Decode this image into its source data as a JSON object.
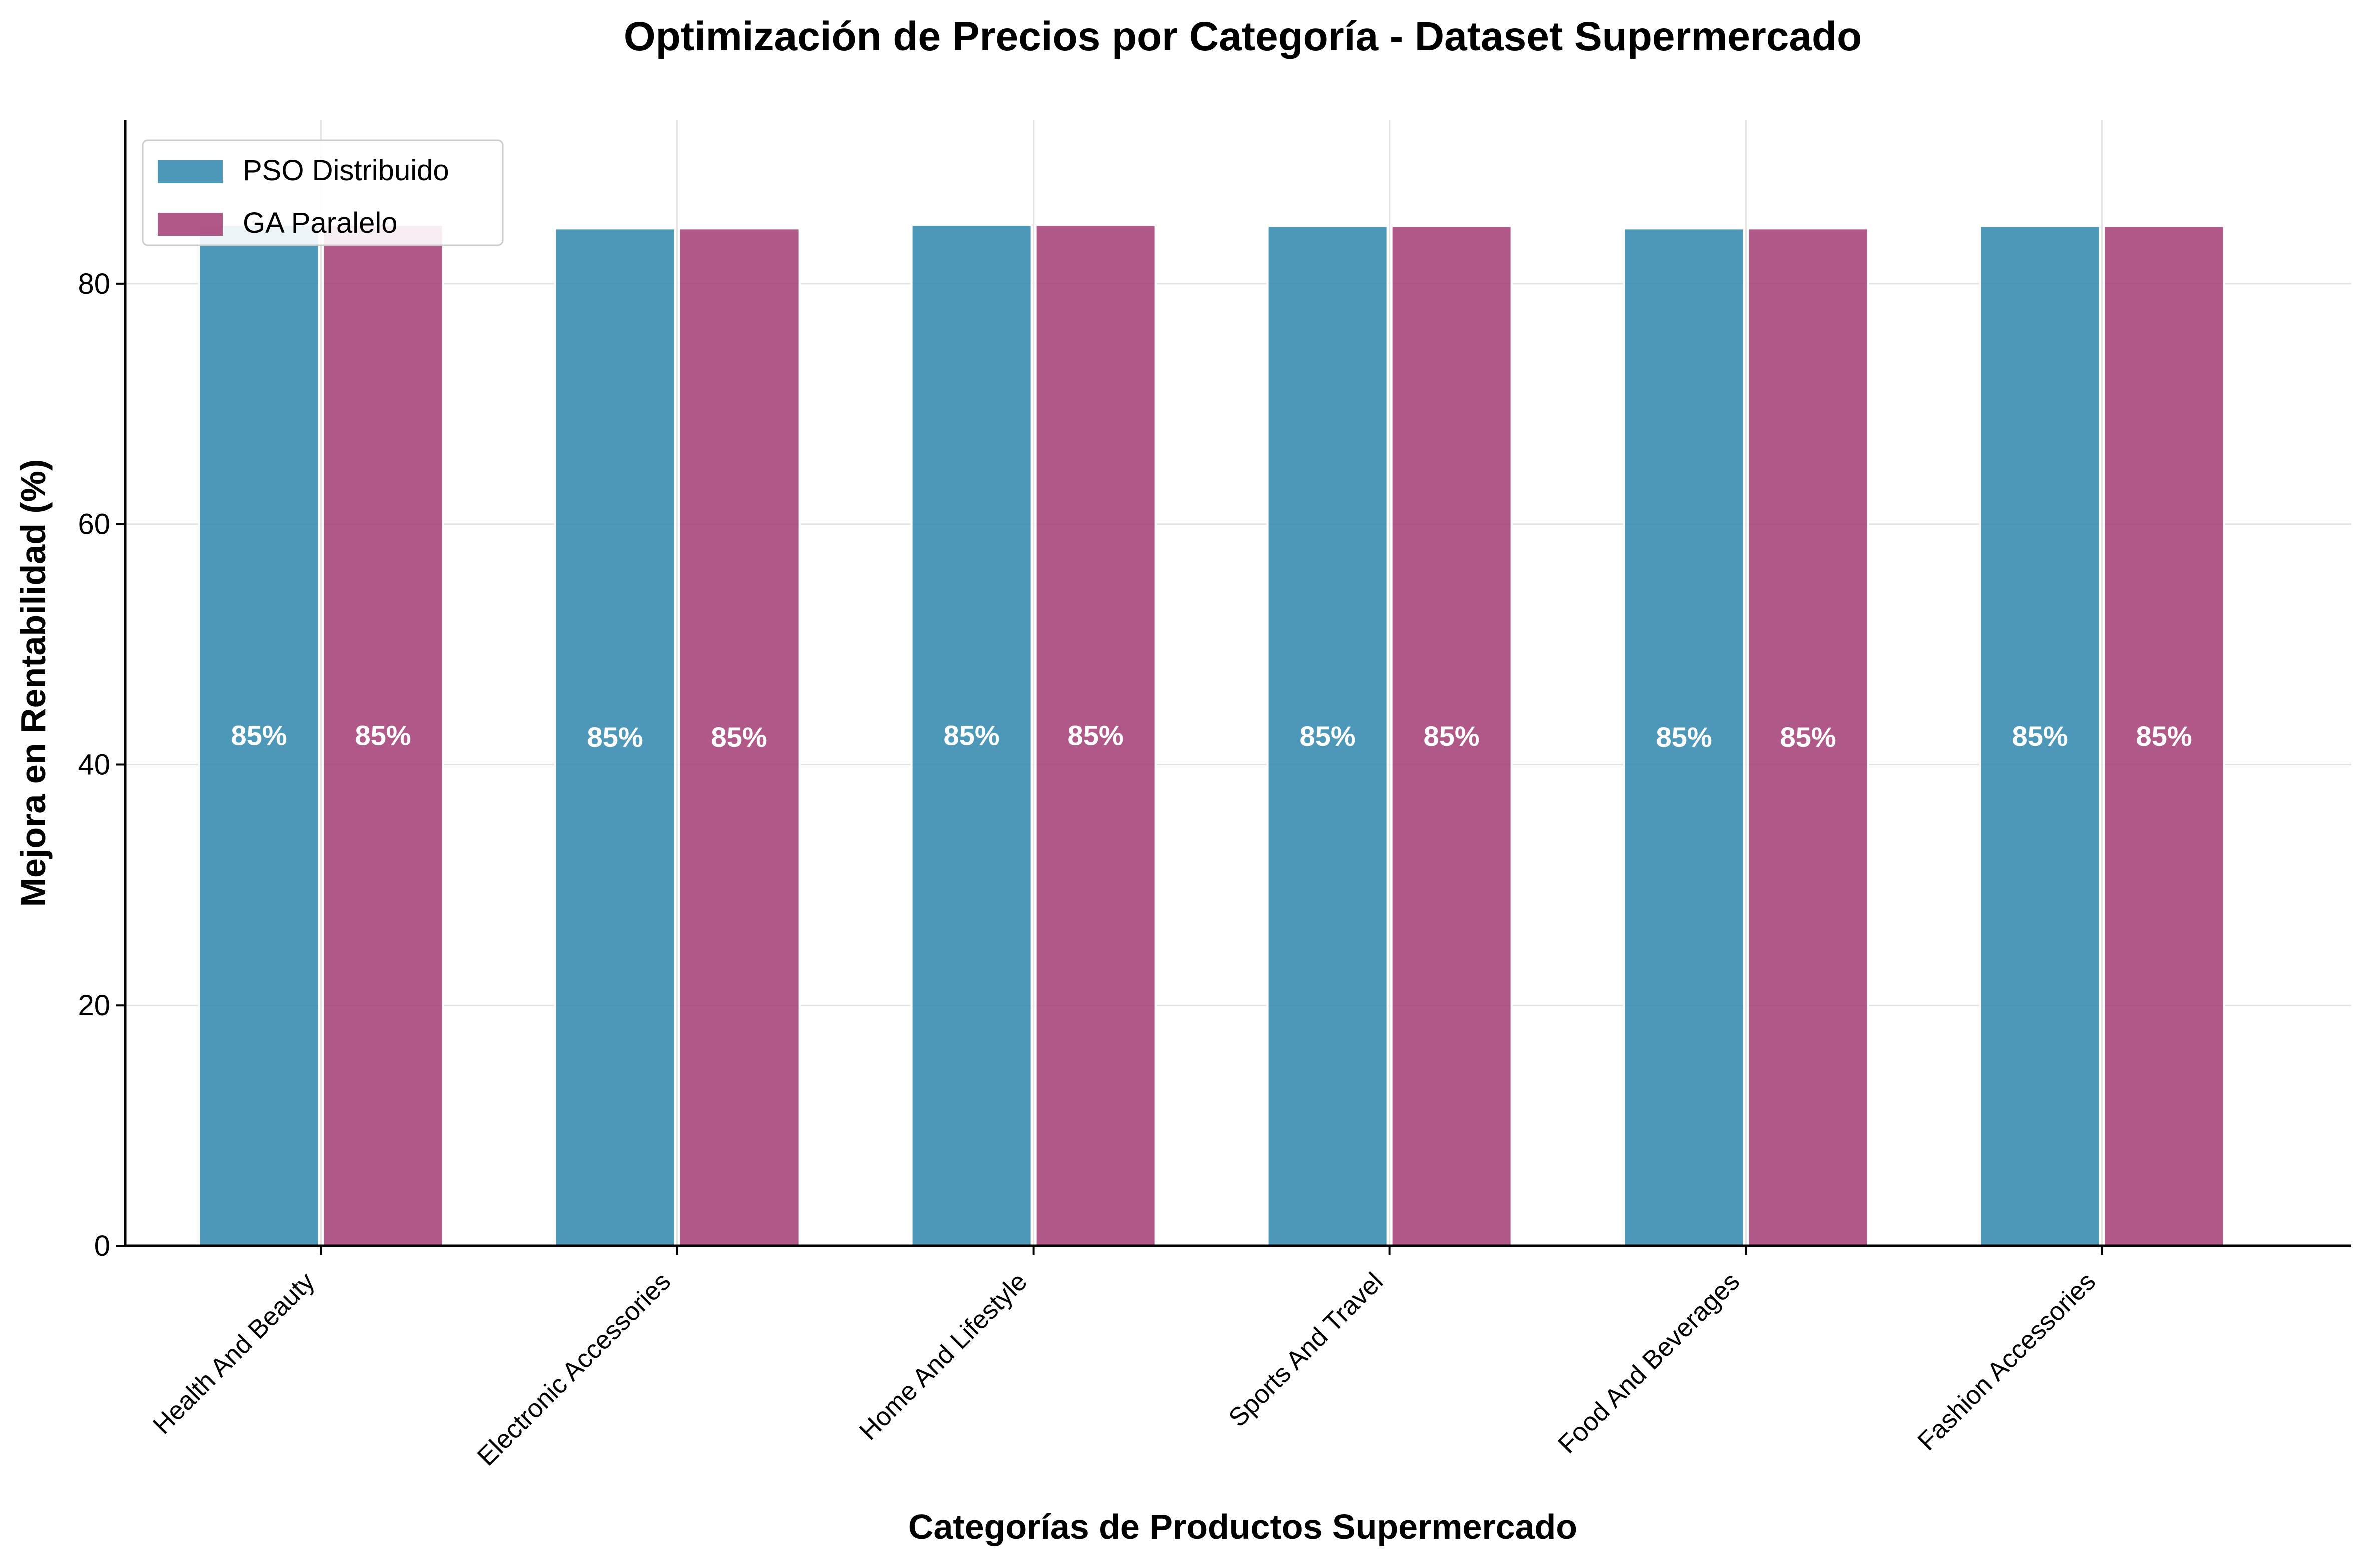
{
  "chart_data": {
    "type": "bar",
    "title": "Optimización de Precios por Categoría - Dataset Supermercado",
    "xlabel": "Categorías de Productos Supermercado",
    "ylabel": "Mejora en Rentabilidad (%)",
    "categories": [
      "Health And Beauty",
      "Electronic Accessories",
      "Home And Lifestyle",
      "Sports And Travel",
      "Food And Beverages",
      "Fashion Accessories"
    ],
    "series": [
      {
        "name": "PSO Distribuido",
        "color": "#2E86AB",
        "values": [
          84.9,
          84.6,
          84.9,
          84.8,
          84.6,
          84.8
        ],
        "labels": [
          "85%",
          "85%",
          "85%",
          "85%",
          "85%",
          "85%"
        ]
      },
      {
        "name": "GA Paralelo",
        "color": "#A23B72",
        "values": [
          84.9,
          84.6,
          84.9,
          84.8,
          84.6,
          84.8
        ],
        "labels": [
          "85%",
          "85%",
          "85%",
          "85%",
          "85%",
          "85%"
        ]
      }
    ],
    "ylim": [
      0,
      93.6
    ],
    "yticks": [
      0,
      20,
      40,
      60,
      80
    ],
    "ytick_labels": [
      "0",
      "20",
      "40",
      "60",
      "80"
    ],
    "grid": true,
    "legend_position": "top-left"
  }
}
